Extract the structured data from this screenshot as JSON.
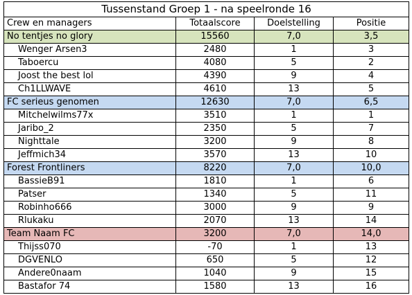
{
  "title": "Tussenstand Groep 1 - na speelronde 16",
  "headers": {
    "name": "Crew en managers",
    "score": "Totaalscore",
    "goal": "Doelstelling",
    "position": "Positie"
  },
  "colors": {
    "team_1": "#d7e4bd",
    "team_2": "#c5d9f1",
    "team_3": "#c5d9f1",
    "team_4": "#e6b8b7",
    "grid": "#000000"
  },
  "rows": [
    {
      "type": "team",
      "name": "No tentjes no glory",
      "score": "15560",
      "goal": "7,0",
      "position": "3,5",
      "color": "#d7e4bd"
    },
    {
      "type": "player",
      "name": "Wenger Arsen3",
      "score": "2480",
      "goal": "1",
      "position": "3"
    },
    {
      "type": "player",
      "name": "Taboercu",
      "score": "4080",
      "goal": "5",
      "position": "2"
    },
    {
      "type": "player",
      "name": "Joost the best lol",
      "score": "4390",
      "goal": "9",
      "position": "4"
    },
    {
      "type": "player",
      "name": "Ch1LLWAVE",
      "score": "4610",
      "goal": "13",
      "position": "5"
    },
    {
      "type": "team",
      "name": "FC serieus genomen",
      "score": "12630",
      "goal": "7,0",
      "position": "6,5",
      "color": "#c5d9f1"
    },
    {
      "type": "player",
      "name": "Mitchelwilms77x",
      "score": "3510",
      "goal": "1",
      "position": "1"
    },
    {
      "type": "player",
      "name": "Jaribo_2",
      "score": "2350",
      "goal": "5",
      "position": "7"
    },
    {
      "type": "player",
      "name": "Nighttale",
      "score": "3200",
      "goal": "9",
      "position": "8"
    },
    {
      "type": "player",
      "name": "Jeffmich34",
      "score": "3570",
      "goal": "13",
      "position": "10"
    },
    {
      "type": "team",
      "name": "Forest Frontliners",
      "score": "8220",
      "goal": "7,0",
      "position": "10,0",
      "color": "#c5d9f1"
    },
    {
      "type": "player",
      "name": "BassieB91",
      "score": "1810",
      "goal": "1",
      "position": "6"
    },
    {
      "type": "player",
      "name": "Patser",
      "score": "1340",
      "goal": "5",
      "position": "11"
    },
    {
      "type": "player",
      "name": "Robinho666",
      "score": "3000",
      "goal": "9",
      "position": "9"
    },
    {
      "type": "player",
      "name": "Rlukaku",
      "score": "2070",
      "goal": "13",
      "position": "14"
    },
    {
      "type": "team",
      "name": "Team Naam FC",
      "score": "3200",
      "goal": "7,0",
      "position": "14,0",
      "color": "#e6b8b7"
    },
    {
      "type": "player",
      "name": "Thijss070",
      "score": "-70",
      "goal": "1",
      "position": "13"
    },
    {
      "type": "player",
      "name": "DGVENLO",
      "score": "650",
      "goal": "5",
      "position": "12"
    },
    {
      "type": "player",
      "name": "Andere0naam",
      "score": "1040",
      "goal": "9",
      "position": "15"
    },
    {
      "type": "player",
      "name": "Bastafor 74",
      "score": "1580",
      "goal": "13",
      "position": "16"
    }
  ]
}
